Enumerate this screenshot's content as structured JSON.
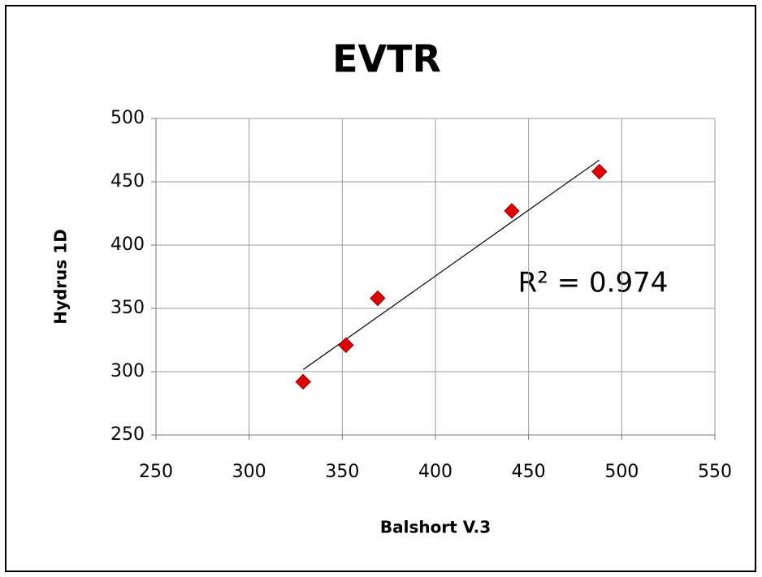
{
  "chart_data": {
    "type": "scatter",
    "title": "EVTR",
    "x_label": "Balshort V.3",
    "y_label": "Hydrus 1D",
    "series": [
      {
        "name": "EVTR",
        "color": "#e00000",
        "x": [
          329,
          352,
          369,
          441,
          488
        ],
        "values": [
          292,
          321,
          358,
          427,
          458
        ]
      }
    ],
    "trendline": "linear",
    "annotation": "R² = 0.974",
    "xlim": [
      250,
      550
    ],
    "xticks": [
      250,
      300,
      350,
      400,
      450,
      500,
      550
    ],
    "ylim": [
      250,
      500
    ],
    "yticks": [
      250,
      300,
      350,
      400,
      450,
      500
    ],
    "grid": true
  }
}
